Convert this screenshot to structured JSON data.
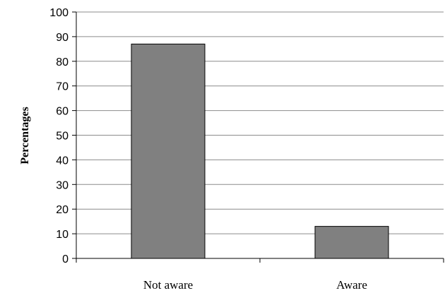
{
  "chart_data": {
    "type": "bar",
    "categories": [
      "Not aware",
      "Aware"
    ],
    "values": [
      87,
      13
    ],
    "title": "",
    "xlabel": "",
    "ylabel": "Percentages",
    "ylim": [
      0,
      100
    ],
    "yticks": [
      0,
      10,
      20,
      30,
      40,
      50,
      60,
      70,
      80,
      90,
      100
    ],
    "grid": true,
    "legend": "none",
    "bar_color": "#808080"
  }
}
